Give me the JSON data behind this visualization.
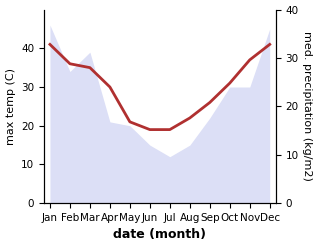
{
  "months": [
    "Jan",
    "Feb",
    "Mar",
    "Apr",
    "May",
    "Jun",
    "Jul",
    "Aug",
    "Sep",
    "Oct",
    "Nov",
    "Dec"
  ],
  "temp_max": [
    41,
    36,
    35,
    30,
    21,
    19,
    19,
    22,
    26,
    31,
    37,
    41
  ],
  "precipitation": [
    46,
    34,
    39,
    21,
    20,
    15,
    12,
    15,
    22,
    30,
    30,
    45
  ],
  "temp_color": "#b03030",
  "precip_fill_color": "#c5caf0",
  "left_ylim": [
    0,
    50
  ],
  "right_ylim": [
    0,
    40
  ],
  "left_yticks": [
    0,
    10,
    20,
    30,
    40
  ],
  "right_yticks": [
    0,
    10,
    20,
    30,
    40
  ],
  "xlabel": "date (month)",
  "ylabel_left": "max temp (C)",
  "ylabel_right": "med. precipitation (kg/m2)",
  "xlabel_fontsize": 9,
  "ylabel_fontsize": 8,
  "tick_fontsize": 7.5,
  "line_width": 2.0
}
